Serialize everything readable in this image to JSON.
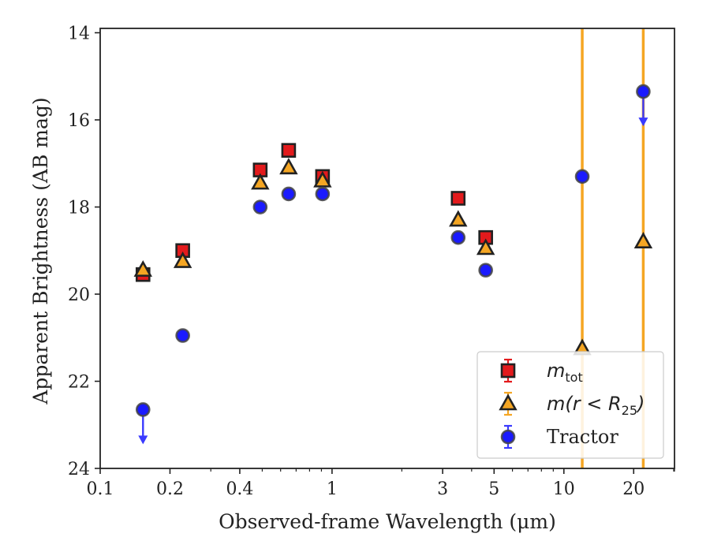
{
  "chart_data": {
    "type": "scatter",
    "xlabel": "Observed-frame Wavelength (μm)",
    "ylabel": "Apparent Brightness (AB mag)",
    "xscale": "log",
    "xlim": [
      0.1,
      30
    ],
    "ylim": [
      24,
      13.9
    ],
    "y_inverted": true,
    "x_ticks": [
      0.1,
      0.2,
      0.4,
      1,
      3,
      5,
      10,
      20
    ],
    "x_tick_labels": [
      "0.1",
      "0.2",
      "0.4",
      "1",
      "3",
      "5",
      "10",
      "20"
    ],
    "y_ticks": [
      14,
      16,
      18,
      20,
      22,
      24
    ],
    "y_tick_labels": [
      "14",
      "16",
      "18",
      "20",
      "22",
      "24"
    ],
    "grid": false,
    "legend_position": "bottom-right",
    "vertical_lines": [
      {
        "x": 12.0,
        "color": "#f5a623"
      },
      {
        "x": 22.0,
        "color": "#f5a623"
      }
    ],
    "series": [
      {
        "name": "m_tot",
        "label_base": "m",
        "label_sub": "tot",
        "marker": "square",
        "fill": "#e31a1c",
        "edge": "#222222",
        "x": [
          0.153,
          0.227,
          0.49,
          0.65,
          0.91,
          3.5,
          4.6
        ],
        "y": [
          19.55,
          19.0,
          17.15,
          16.7,
          17.3,
          17.8,
          18.7
        ],
        "upper_limit": [
          false,
          false,
          false,
          false,
          false,
          false,
          false
        ]
      },
      {
        "name": "m(r < R25)",
        "label_base": "m(r < R",
        "label_sub": "25",
        "label_end": ")",
        "marker": "triangle",
        "fill": "#f5a623",
        "edge": "#222222",
        "x": [
          0.153,
          0.227,
          0.49,
          0.65,
          0.91,
          3.5,
          4.6,
          12.0,
          22.0
        ],
        "y": [
          19.45,
          19.25,
          17.45,
          17.1,
          17.4,
          18.3,
          18.95,
          21.25,
          18.8
        ],
        "upper_limit": [
          false,
          false,
          false,
          false,
          false,
          false,
          false,
          false,
          false
        ]
      },
      {
        "name": "Tractor",
        "marker": "circle",
        "fill": "#1a1aff",
        "edge": "#444444",
        "x": [
          0.153,
          0.227,
          0.49,
          0.65,
          0.91,
          3.5,
          4.6,
          12.0,
          22.0
        ],
        "y": [
          22.65,
          20.95,
          18.0,
          17.7,
          17.7,
          18.7,
          19.45,
          17.3,
          15.35
        ],
        "upper_limit": [
          true,
          false,
          false,
          false,
          false,
          false,
          false,
          false,
          true
        ]
      }
    ]
  }
}
